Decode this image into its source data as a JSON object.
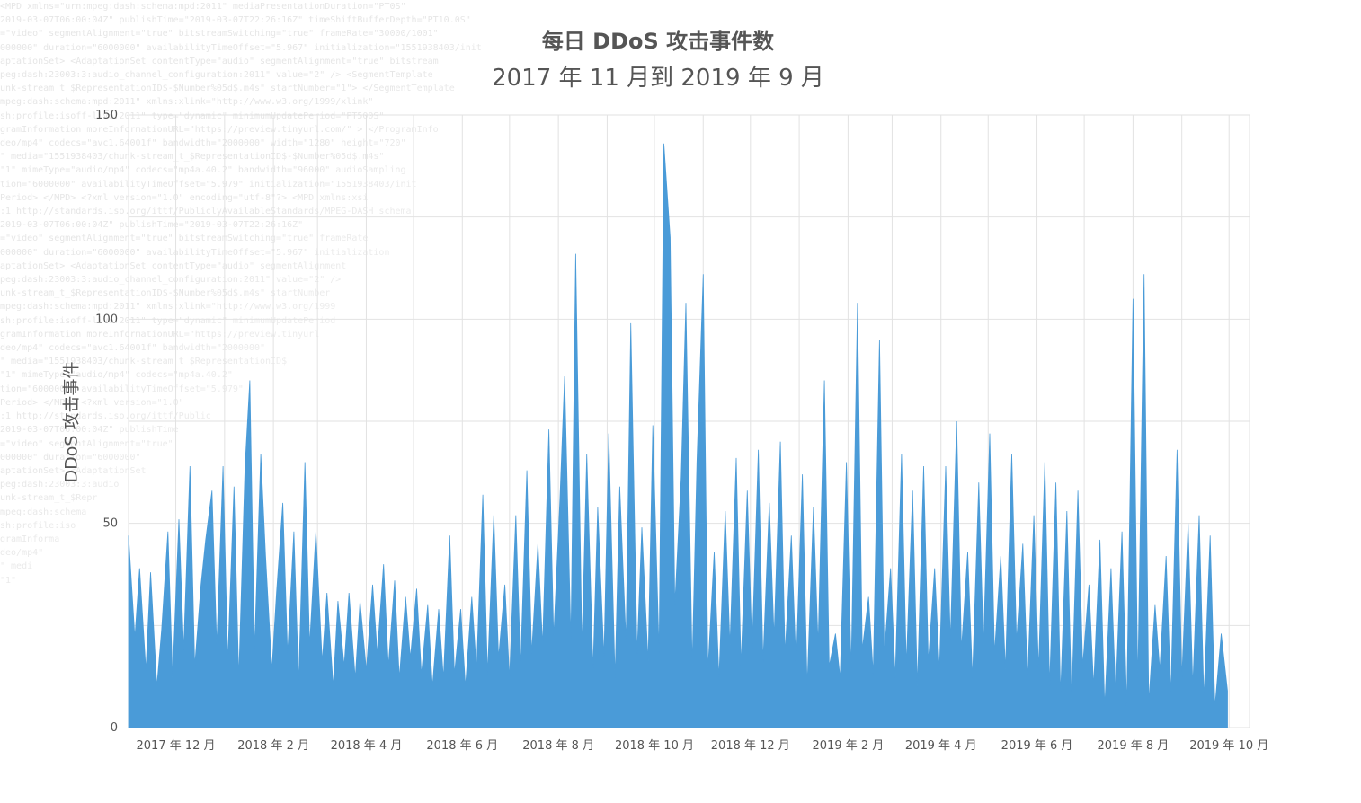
{
  "chart_data": {
    "type": "area",
    "title": "每日 DDoS 攻击事件数",
    "subtitle": "2017 年 11 月到 2019 年 9 月",
    "xlabel": "",
    "ylabel": "DDoS 攻击事件",
    "ylim": [
      0,
      150
    ],
    "yticks": [
      0,
      50,
      100,
      150
    ],
    "xlim": [
      "2017-11-01",
      "2019-10-14"
    ],
    "xticks": [
      {
        "date": "2017-12-01",
        "label": "2017 年 12 月"
      },
      {
        "date": "2018-02-01",
        "label": "2018 年 2 月"
      },
      {
        "date": "2018-04-01",
        "label": "2018 年 4 月"
      },
      {
        "date": "2018-06-01",
        "label": "2018 年 6 月"
      },
      {
        "date": "2018-08-01",
        "label": "2018 年 8 月"
      },
      {
        "date": "2018-10-01",
        "label": "2018 年 10 月"
      },
      {
        "date": "2018-12-01",
        "label": "2018 年 12 月"
      },
      {
        "date": "2019-02-01",
        "label": "2019 年 2 月"
      },
      {
        "date": "2019-04-01",
        "label": "2019 年 4 月"
      },
      {
        "date": "2019-06-01",
        "label": "2019 年 6 月"
      },
      {
        "date": "2019-08-01",
        "label": "2019 年 8 月"
      },
      {
        "date": "2019-10-01",
        "label": "2019 年 10 月"
      }
    ],
    "grid": true,
    "series_color": "#4a9bd8",
    "series": [
      {
        "name": "",
        "points": [
          {
            "date": "2017-11-01",
            "value": 47
          },
          {
            "date": "2017-11-05",
            "value": 22
          },
          {
            "date": "2017-11-08",
            "value": 39
          },
          {
            "date": "2017-11-12",
            "value": 14
          },
          {
            "date": "2017-11-15",
            "value": 38
          },
          {
            "date": "2017-11-19",
            "value": 10
          },
          {
            "date": "2017-11-22",
            "value": 24
          },
          {
            "date": "2017-11-26",
            "value": 48
          },
          {
            "date": "2017-11-29",
            "value": 12
          },
          {
            "date": "2017-12-03",
            "value": 51
          },
          {
            "date": "2017-12-06",
            "value": 19
          },
          {
            "date": "2017-12-10",
            "value": 64
          },
          {
            "date": "2017-12-13",
            "value": 15
          },
          {
            "date": "2017-12-17",
            "value": 35
          },
          {
            "date": "2017-12-20",
            "value": 46
          },
          {
            "date": "2017-12-24",
            "value": 58
          },
          {
            "date": "2017-12-27",
            "value": 20
          },
          {
            "date": "2017-12-31",
            "value": 64
          },
          {
            "date": "2018-01-03",
            "value": 16
          },
          {
            "date": "2018-01-07",
            "value": 59
          },
          {
            "date": "2018-01-10",
            "value": 12
          },
          {
            "date": "2018-01-14",
            "value": 64
          },
          {
            "date": "2018-01-17",
            "value": 85
          },
          {
            "date": "2018-01-20",
            "value": 19
          },
          {
            "date": "2018-01-24",
            "value": 67
          },
          {
            "date": "2018-01-27",
            "value": 42
          },
          {
            "date": "2018-01-31",
            "value": 14
          },
          {
            "date": "2018-02-03",
            "value": 33
          },
          {
            "date": "2018-02-07",
            "value": 55
          },
          {
            "date": "2018-02-10",
            "value": 18
          },
          {
            "date": "2018-02-14",
            "value": 48
          },
          {
            "date": "2018-02-17",
            "value": 11
          },
          {
            "date": "2018-02-21",
            "value": 65
          },
          {
            "date": "2018-02-24",
            "value": 20
          },
          {
            "date": "2018-02-28",
            "value": 48
          },
          {
            "date": "2018-03-04",
            "value": 16
          },
          {
            "date": "2018-03-07",
            "value": 33
          },
          {
            "date": "2018-03-11",
            "value": 10
          },
          {
            "date": "2018-03-14",
            "value": 31
          },
          {
            "date": "2018-03-18",
            "value": 15
          },
          {
            "date": "2018-03-21",
            "value": 33
          },
          {
            "date": "2018-03-25",
            "value": 12
          },
          {
            "date": "2018-03-28",
            "value": 31
          },
          {
            "date": "2018-04-01",
            "value": 14
          },
          {
            "date": "2018-04-05",
            "value": 35
          },
          {
            "date": "2018-04-08",
            "value": 18
          },
          {
            "date": "2018-04-12",
            "value": 40
          },
          {
            "date": "2018-04-15",
            "value": 15
          },
          {
            "date": "2018-04-19",
            "value": 36
          },
          {
            "date": "2018-04-22",
            "value": 12
          },
          {
            "date": "2018-04-26",
            "value": 32
          },
          {
            "date": "2018-04-29",
            "value": 17
          },
          {
            "date": "2018-05-03",
            "value": 34
          },
          {
            "date": "2018-05-06",
            "value": 13
          },
          {
            "date": "2018-05-10",
            "value": 30
          },
          {
            "date": "2018-05-13",
            "value": 10
          },
          {
            "date": "2018-05-17",
            "value": 29
          },
          {
            "date": "2018-05-20",
            "value": 12
          },
          {
            "date": "2018-05-24",
            "value": 47
          },
          {
            "date": "2018-05-27",
            "value": 13
          },
          {
            "date": "2018-05-31",
            "value": 29
          },
          {
            "date": "2018-06-03",
            "value": 10
          },
          {
            "date": "2018-06-07",
            "value": 32
          },
          {
            "date": "2018-06-10",
            "value": 14
          },
          {
            "date": "2018-06-14",
            "value": 57
          },
          {
            "date": "2018-06-17",
            "value": 13
          },
          {
            "date": "2018-06-21",
            "value": 52
          },
          {
            "date": "2018-06-24",
            "value": 17
          },
          {
            "date": "2018-06-28",
            "value": 35
          },
          {
            "date": "2018-07-01",
            "value": 12
          },
          {
            "date": "2018-07-05",
            "value": 52
          },
          {
            "date": "2018-07-08",
            "value": 15
          },
          {
            "date": "2018-07-12",
            "value": 63
          },
          {
            "date": "2018-07-15",
            "value": 18
          },
          {
            "date": "2018-07-19",
            "value": 45
          },
          {
            "date": "2018-07-22",
            "value": 20
          },
          {
            "date": "2018-07-26",
            "value": 73
          },
          {
            "date": "2018-07-29",
            "value": 22
          },
          {
            "date": "2018-08-02",
            "value": 56
          },
          {
            "date": "2018-08-05",
            "value": 86
          },
          {
            "date": "2018-08-09",
            "value": 21
          },
          {
            "date": "2018-08-12",
            "value": 116
          },
          {
            "date": "2018-08-16",
            "value": 19
          },
          {
            "date": "2018-08-19",
            "value": 67
          },
          {
            "date": "2018-08-23",
            "value": 14
          },
          {
            "date": "2018-08-26",
            "value": 54
          },
          {
            "date": "2018-08-30",
            "value": 17
          },
          {
            "date": "2018-09-02",
            "value": 72
          },
          {
            "date": "2018-09-06",
            "value": 12
          },
          {
            "date": "2018-09-09",
            "value": 59
          },
          {
            "date": "2018-09-13",
            "value": 21
          },
          {
            "date": "2018-09-16",
            "value": 99
          },
          {
            "date": "2018-09-20",
            "value": 18
          },
          {
            "date": "2018-09-23",
            "value": 49
          },
          {
            "date": "2018-09-27",
            "value": 16
          },
          {
            "date": "2018-09-30",
            "value": 74
          },
          {
            "date": "2018-10-04",
            "value": 18
          },
          {
            "date": "2018-10-07",
            "value": 143
          },
          {
            "date": "2018-10-11",
            "value": 120
          },
          {
            "date": "2018-10-14",
            "value": 30
          },
          {
            "date": "2018-10-18",
            "value": 61
          },
          {
            "date": "2018-10-21",
            "value": 104
          },
          {
            "date": "2018-10-25",
            "value": 15
          },
          {
            "date": "2018-10-28",
            "value": 65
          },
          {
            "date": "2018-11-01",
            "value": 111
          },
          {
            "date": "2018-11-04",
            "value": 14
          },
          {
            "date": "2018-11-08",
            "value": 43
          },
          {
            "date": "2018-11-11",
            "value": 12
          },
          {
            "date": "2018-11-15",
            "value": 53
          },
          {
            "date": "2018-11-18",
            "value": 20
          },
          {
            "date": "2018-11-22",
            "value": 66
          },
          {
            "date": "2018-11-25",
            "value": 15
          },
          {
            "date": "2018-11-29",
            "value": 58
          },
          {
            "date": "2018-12-02",
            "value": 19
          },
          {
            "date": "2018-12-06",
            "value": 68
          },
          {
            "date": "2018-12-09",
            "value": 16
          },
          {
            "date": "2018-12-13",
            "value": 55
          },
          {
            "date": "2018-12-16",
            "value": 22
          },
          {
            "date": "2018-12-20",
            "value": 70
          },
          {
            "date": "2018-12-23",
            "value": 18
          },
          {
            "date": "2018-12-27",
            "value": 47
          },
          {
            "date": "2018-12-30",
            "value": 15
          },
          {
            "date": "2019-01-03",
            "value": 62
          },
          {
            "date": "2019-01-06",
            "value": 10
          },
          {
            "date": "2019-01-10",
            "value": 54
          },
          {
            "date": "2019-01-13",
            "value": 20
          },
          {
            "date": "2019-01-17",
            "value": 85
          },
          {
            "date": "2019-01-20",
            "value": 15
          },
          {
            "date": "2019-01-24",
            "value": 23
          },
          {
            "date": "2019-01-27",
            "value": 12
          },
          {
            "date": "2019-01-31",
            "value": 65
          },
          {
            "date": "2019-02-03",
            "value": 14
          },
          {
            "date": "2019-02-07",
            "value": 104
          },
          {
            "date": "2019-02-10",
            "value": 19
          },
          {
            "date": "2019-02-14",
            "value": 32
          },
          {
            "date": "2019-02-17",
            "value": 13
          },
          {
            "date": "2019-02-21",
            "value": 95
          },
          {
            "date": "2019-02-24",
            "value": 18
          },
          {
            "date": "2019-02-28",
            "value": 39
          },
          {
            "date": "2019-03-03",
            "value": 12
          },
          {
            "date": "2019-03-07",
            "value": 67
          },
          {
            "date": "2019-03-10",
            "value": 15
          },
          {
            "date": "2019-03-14",
            "value": 58
          },
          {
            "date": "2019-03-17",
            "value": 10
          },
          {
            "date": "2019-03-21",
            "value": 64
          },
          {
            "date": "2019-03-24",
            "value": 16
          },
          {
            "date": "2019-03-28",
            "value": 39
          },
          {
            "date": "2019-03-31",
            "value": 14
          },
          {
            "date": "2019-04-04",
            "value": 64
          },
          {
            "date": "2019-04-07",
            "value": 21
          },
          {
            "date": "2019-04-11",
            "value": 75
          },
          {
            "date": "2019-04-14",
            "value": 19
          },
          {
            "date": "2019-04-18",
            "value": 43
          },
          {
            "date": "2019-04-21",
            "value": 12
          },
          {
            "date": "2019-04-25",
            "value": 60
          },
          {
            "date": "2019-04-28",
            "value": 20
          },
          {
            "date": "2019-05-02",
            "value": 72
          },
          {
            "date": "2019-05-05",
            "value": 18
          },
          {
            "date": "2019-05-09",
            "value": 42
          },
          {
            "date": "2019-05-12",
            "value": 14
          },
          {
            "date": "2019-05-16",
            "value": 67
          },
          {
            "date": "2019-05-19",
            "value": 21
          },
          {
            "date": "2019-05-23",
            "value": 45
          },
          {
            "date": "2019-05-26",
            "value": 12
          },
          {
            "date": "2019-05-30",
            "value": 52
          },
          {
            "date": "2019-06-02",
            "value": 14
          },
          {
            "date": "2019-06-06",
            "value": 65
          },
          {
            "date": "2019-06-09",
            "value": 10
          },
          {
            "date": "2019-06-13",
            "value": 60
          },
          {
            "date": "2019-06-16",
            "value": 8
          },
          {
            "date": "2019-06-20",
            "value": 53
          },
          {
            "date": "2019-06-23",
            "value": 6
          },
          {
            "date": "2019-06-27",
            "value": 58
          },
          {
            "date": "2019-06-30",
            "value": 15
          },
          {
            "date": "2019-07-04",
            "value": 35
          },
          {
            "date": "2019-07-07",
            "value": 10
          },
          {
            "date": "2019-07-11",
            "value": 46
          },
          {
            "date": "2019-07-14",
            "value": 5
          },
          {
            "date": "2019-07-18",
            "value": 39
          },
          {
            "date": "2019-07-21",
            "value": 8
          },
          {
            "date": "2019-07-25",
            "value": 48
          },
          {
            "date": "2019-07-28",
            "value": 5
          },
          {
            "date": "2019-08-01",
            "value": 105
          },
          {
            "date": "2019-08-04",
            "value": 10
          },
          {
            "date": "2019-08-08",
            "value": 111
          },
          {
            "date": "2019-08-11",
            "value": 6
          },
          {
            "date": "2019-08-15",
            "value": 30
          },
          {
            "date": "2019-08-18",
            "value": 14
          },
          {
            "date": "2019-08-22",
            "value": 42
          },
          {
            "date": "2019-08-25",
            "value": 8
          },
          {
            "date": "2019-08-29",
            "value": 68
          },
          {
            "date": "2019-09-01",
            "value": 12
          },
          {
            "date": "2019-09-05",
            "value": 50
          },
          {
            "date": "2019-09-08",
            "value": 10
          },
          {
            "date": "2019-09-12",
            "value": 52
          },
          {
            "date": "2019-09-15",
            "value": 7
          },
          {
            "date": "2019-09-19",
            "value": 47
          },
          {
            "date": "2019-09-22",
            "value": 5
          },
          {
            "date": "2019-09-26",
            "value": 23
          },
          {
            "date": "2019-09-30",
            "value": 9
          }
        ]
      }
    ]
  }
}
